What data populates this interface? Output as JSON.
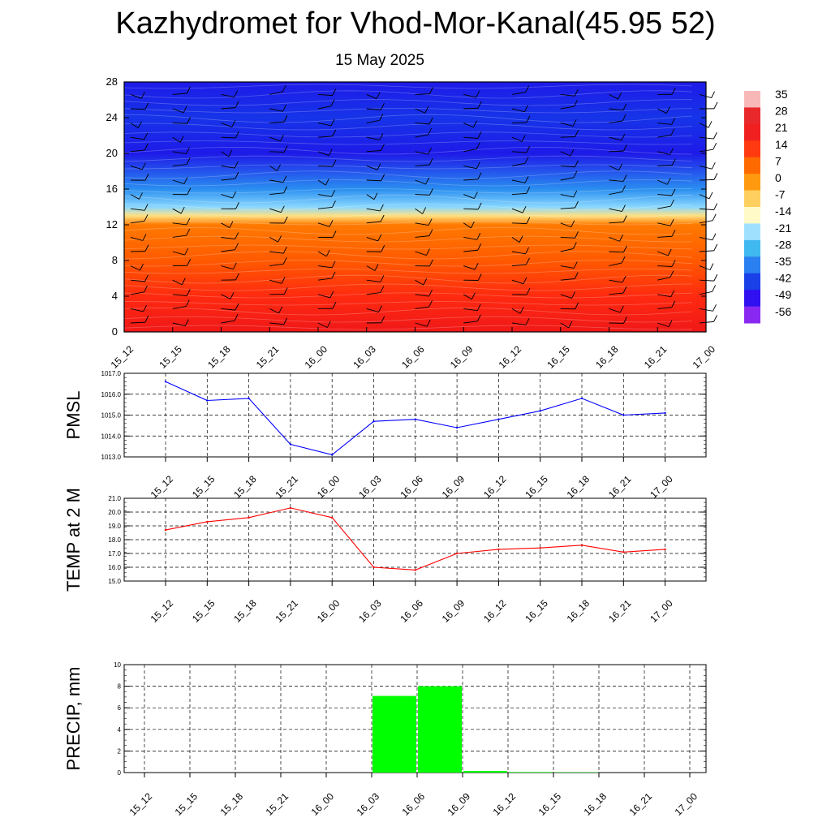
{
  "title": "Kazhydromet for Vhod-Mor-Kanal(45.95 52)",
  "subtitle": "15 May 2025",
  "chart_data": [
    {
      "type": "heatmap",
      "description_ylabel": "",
      "x_categories": [
        "15_12",
        "15_15",
        "15_18",
        "15_21",
        "16_00",
        "16_03",
        "16_06",
        "16_09",
        "16_12",
        "16_15",
        "16_18",
        "16_21",
        "17_00"
      ],
      "y_ticks": [
        0,
        4,
        8,
        12,
        16,
        20,
        24,
        28
      ],
      "ylim": [
        0,
        28
      ],
      "temperature_profile_by_height": [
        {
          "y": 0,
          "value": 14
        },
        {
          "y": 4,
          "value": 13
        },
        {
          "y": 8,
          "value": 9
        },
        {
          "y": 12,
          "value": 3
        },
        {
          "y": 13,
          "value": -7
        },
        {
          "y": 14,
          "value": -21
        },
        {
          "y": 16,
          "value": -35
        },
        {
          "y": 20,
          "value": -56
        },
        {
          "y": 24,
          "value": -49
        },
        {
          "y": 28,
          "value": -56
        }
      ],
      "wind_barbs": true,
      "colorbar": {
        "labels": [
          "35",
          "28",
          "21",
          "14",
          "7",
          "0",
          "-7",
          "-14",
          "-21",
          "-28",
          "-35",
          "-42",
          "-49",
          "-56"
        ],
        "colors": [
          "#f8b8b8",
          "#e8282a",
          "#f02020",
          "#ff3a10",
          "#ff6a00",
          "#ff9a10",
          "#ffd060",
          "#fffac8",
          "#a0e0ff",
          "#40b8f0",
          "#2a80f0",
          "#1a40e8",
          "#3010f0",
          "#8828f0"
        ]
      }
    },
    {
      "type": "line",
      "ylabel": "PMSL",
      "categories": [
        "15_12",
        "15_15",
        "15_18",
        "15_21",
        "16_00",
        "16_03",
        "16_06",
        "16_09",
        "16_12",
        "16_15",
        "16_18",
        "16_21",
        "17_00"
      ],
      "values": [
        1016.6,
        1015.7,
        1015.8,
        1013.6,
        1013.1,
        1014.7,
        1014.8,
        1014.4,
        1014.8,
        1015.2,
        1015.8,
        1015.0,
        1015.1
      ],
      "ylim": [
        1013.0,
        1017.0
      ],
      "yticks": [
        "1013.0",
        "1014.0",
        "1015.0",
        "1016.0",
        "1017.0"
      ],
      "color": "#0000ff",
      "grid": true
    },
    {
      "type": "line",
      "ylabel": "TEMP at 2 M",
      "categories": [
        "15_12",
        "15_15",
        "15_18",
        "15_21",
        "16_00",
        "16_03",
        "16_06",
        "16_09",
        "16_12",
        "16_15",
        "16_18",
        "16_21",
        "17_00"
      ],
      "values": [
        18.7,
        19.3,
        19.6,
        20.3,
        19.6,
        16.0,
        15.8,
        17.0,
        17.3,
        17.4,
        17.6,
        17.1,
        17.3
      ],
      "ylim": [
        15.0,
        21.0
      ],
      "yticks": [
        "15.0",
        "16.0",
        "17.0",
        "18.0",
        "19.0",
        "20.0",
        "21.0"
      ],
      "color": "#ff0000",
      "grid": true
    },
    {
      "type": "bar",
      "ylabel": "PRECIP, mm",
      "categories": [
        "15_12",
        "15_15",
        "15_18",
        "15_21",
        "16_00",
        "16_03",
        "16_06",
        "16_09",
        "16_12",
        "16_15",
        "16_18",
        "16_21",
        "17_00"
      ],
      "values": [
        0,
        0,
        0,
        0,
        0,
        7.1,
        8.0,
        0.15,
        0.05,
        0.03,
        0,
        0,
        0
      ],
      "ylim": [
        0,
        10
      ],
      "yticks": [
        "0",
        "2",
        "4",
        "6",
        "8",
        "10"
      ],
      "color": "#00ff00",
      "grid": true
    }
  ]
}
